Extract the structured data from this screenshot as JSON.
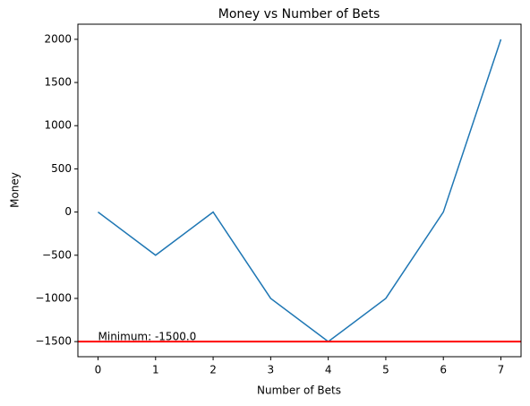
{
  "chart_data": {
    "type": "line",
    "title": "Money vs Number of Bets",
    "x_label": "Number of Bets",
    "y_label": "Money",
    "x": [
      0,
      1,
      2,
      3,
      4,
      5,
      6,
      7
    ],
    "series": [
      {
        "name": "Money",
        "color": "#1f77b4",
        "values": [
          0,
          -500,
          0,
          -1000,
          -1500,
          -1000,
          0,
          2000
        ]
      }
    ],
    "hline": {
      "value": -1500,
      "color": "#ff0000"
    },
    "annotation": "Minimum: -1500.0",
    "xlim": [
      -0.35,
      7.35
    ],
    "xticks": [
      0,
      1,
      2,
      3,
      4,
      5,
      6,
      7
    ],
    "ylim": [
      -1675,
      2175
    ],
    "yticks": [
      {
        "value": -1500,
        "label": "−1500"
      },
      {
        "value": -1000,
        "label": "−1000"
      },
      {
        "value": -500,
        "label": "−500"
      },
      0,
      500,
      1000,
      1500,
      2000
    ],
    "grid": false
  }
}
